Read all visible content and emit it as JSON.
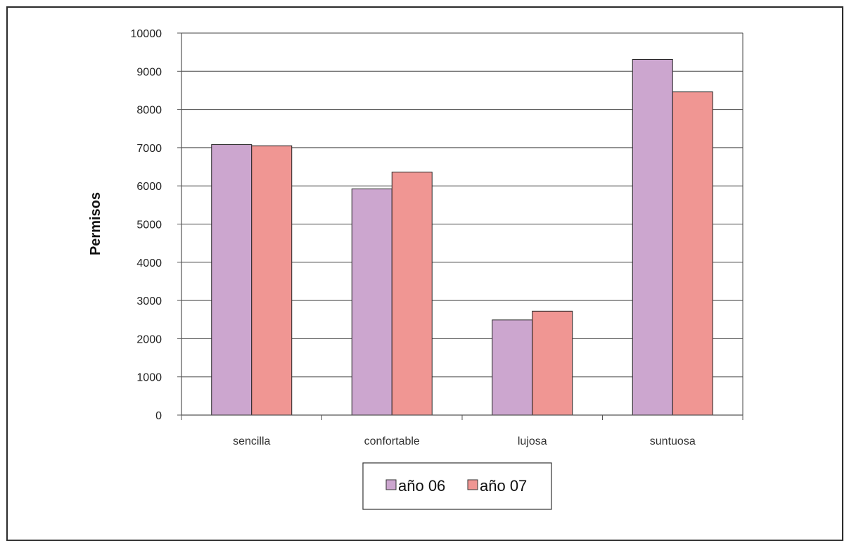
{
  "chart_data": {
    "type": "bar",
    "title": "",
    "xlabel": "",
    "ylabel": "Permisos",
    "categories": [
      "sencilla",
      "confortable",
      "lujosa",
      "suntuosa"
    ],
    "series": [
      {
        "name": "año 06",
        "color": "#cca6cf",
        "values": [
          7080,
          5920,
          2490,
          9310
        ]
      },
      {
        "name": "año 07",
        "color": "#f09693",
        "values": [
          7050,
          6360,
          2720,
          8460
        ]
      }
    ],
    "ylim": [
      0,
      10000
    ],
    "yticks": [
      0,
      1000,
      2000,
      3000,
      4000,
      5000,
      6000,
      7000,
      8000,
      9000,
      10000
    ],
    "grid": true,
    "legend_position": "bottom"
  }
}
